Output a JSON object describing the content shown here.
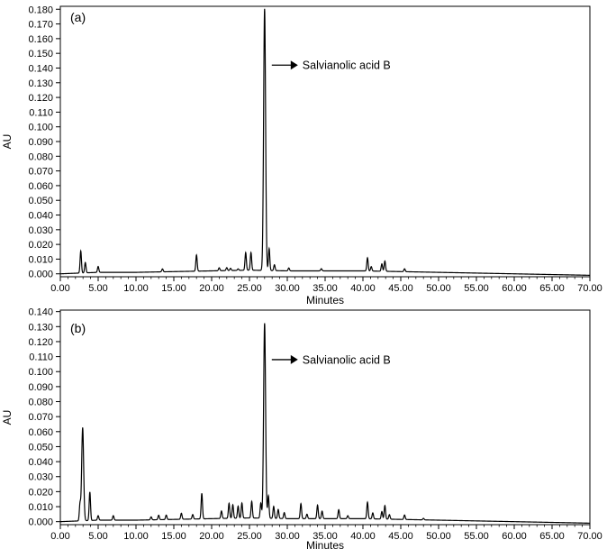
{
  "chart_data": [
    {
      "type": "line",
      "panel_label": "(a)",
      "xlabel": "Minutes",
      "ylabel": "AU",
      "xlim": [
        0,
        70
      ],
      "ylim": [
        -0.002,
        0.182
      ],
      "x_ticks": [
        "0.00",
        "5.00",
        "10.00",
        "15.00",
        "20.00",
        "25.00",
        "30.00",
        "35.00",
        "40.00",
        "45.00",
        "50.00",
        "55.00",
        "60.00",
        "65.00",
        "70.00"
      ],
      "y_ticks": [
        "0.000",
        "0.010",
        "0.020",
        "0.030",
        "0.040",
        "0.050",
        "0.060",
        "0.070",
        "0.080",
        "0.090",
        "0.100",
        "0.110",
        "0.120",
        "0.130",
        "0.140",
        "0.150",
        "0.160",
        "0.170",
        "0.180"
      ],
      "annotation": {
        "text": "Salvianolic acid B",
        "x": 27.0,
        "y": 0.142
      },
      "baseline": [
        [
          0,
          0.0
        ],
        [
          5,
          0.001
        ],
        [
          10,
          0.001
        ],
        [
          15,
          0.0015
        ],
        [
          20,
          0.002
        ],
        [
          25,
          0.0025
        ],
        [
          30,
          0.002
        ],
        [
          35,
          0.002
        ],
        [
          40,
          0.002
        ],
        [
          45,
          0.0015
        ],
        [
          50,
          0.001
        ],
        [
          55,
          0.0005
        ],
        [
          60,
          0.0
        ],
        [
          65,
          -0.0005
        ],
        [
          70,
          -0.001
        ]
      ],
      "peaks": [
        {
          "rt": 2.7,
          "height": 0.015
        },
        {
          "rt": 3.3,
          "height": 0.007
        },
        {
          "rt": 5.0,
          "height": 0.004
        },
        {
          "rt": 13.5,
          "height": 0.002
        },
        {
          "rt": 18.0,
          "height": 0.011
        },
        {
          "rt": 21.0,
          "height": 0.002
        },
        {
          "rt": 22.0,
          "height": 0.002
        },
        {
          "rt": 22.5,
          "height": 0.0015
        },
        {
          "rt": 23.5,
          "height": 0.001
        },
        {
          "rt": 24.5,
          "height": 0.012
        },
        {
          "rt": 25.2,
          "height": 0.012
        },
        {
          "rt": 27.0,
          "height": 0.178
        },
        {
          "rt": 27.6,
          "height": 0.015
        },
        {
          "rt": 28.3,
          "height": 0.004
        },
        {
          "rt": 30.2,
          "height": 0.002
        },
        {
          "rt": 34.5,
          "height": 0.0015
        },
        {
          "rt": 40.6,
          "height": 0.009
        },
        {
          "rt": 41.1,
          "height": 0.003
        },
        {
          "rt": 42.5,
          "height": 0.005
        },
        {
          "rt": 42.9,
          "height": 0.007
        },
        {
          "rt": 45.5,
          "height": 0.002
        }
      ]
    },
    {
      "type": "line",
      "panel_label": "(b)",
      "xlabel": "Minutes",
      "ylabel": "AU",
      "xlim": [
        0,
        70
      ],
      "ylim": [
        -0.002,
        0.141
      ],
      "x_ticks": [
        "0.00",
        "5.00",
        "10.00",
        "15.00",
        "20.00",
        "25.00",
        "30.00",
        "35.00",
        "40.00",
        "45.00",
        "50.00",
        "55.00",
        "60.00",
        "65.00",
        "70.00"
      ],
      "y_ticks": [
        "0.000",
        "0.010",
        "0.020",
        "0.030",
        "0.040",
        "0.050",
        "0.060",
        "0.070",
        "0.080",
        "0.090",
        "0.100",
        "0.110",
        "0.120",
        "0.130",
        "0.140"
      ],
      "annotation": {
        "text": "Salvianolic acid B",
        "x": 27.0,
        "y": 0.108
      },
      "baseline": [
        [
          0,
          0.0
        ],
        [
          5,
          0.001
        ],
        [
          10,
          0.001
        ],
        [
          15,
          0.0015
        ],
        [
          20,
          0.002
        ],
        [
          25,
          0.0025
        ],
        [
          30,
          0.002
        ],
        [
          35,
          0.002
        ],
        [
          40,
          0.002
        ],
        [
          45,
          0.0015
        ],
        [
          50,
          0.001
        ],
        [
          55,
          0.0005
        ],
        [
          60,
          0.0
        ],
        [
          65,
          -0.0005
        ],
        [
          70,
          -0.001
        ]
      ],
      "peaks": [
        {
          "rt": 2.6,
          "height": 0.011
        },
        {
          "rt": 2.95,
          "height": 0.062
        },
        {
          "rt": 3.9,
          "height": 0.019
        },
        {
          "rt": 5.0,
          "height": 0.003
        },
        {
          "rt": 7.0,
          "height": 0.003
        },
        {
          "rt": 12.0,
          "height": 0.002
        },
        {
          "rt": 13.0,
          "height": 0.003
        },
        {
          "rt": 14.0,
          "height": 0.003
        },
        {
          "rt": 16.0,
          "height": 0.004
        },
        {
          "rt": 17.5,
          "height": 0.003
        },
        {
          "rt": 18.7,
          "height": 0.017
        },
        {
          "rt": 21.3,
          "height": 0.005
        },
        {
          "rt": 22.3,
          "height": 0.01
        },
        {
          "rt": 22.8,
          "height": 0.009
        },
        {
          "rt": 23.5,
          "height": 0.008
        },
        {
          "rt": 24.0,
          "height": 0.01
        },
        {
          "rt": 25.3,
          "height": 0.011
        },
        {
          "rt": 26.5,
          "height": 0.01
        },
        {
          "rt": 27.0,
          "height": 0.13
        },
        {
          "rt": 27.5,
          "height": 0.015
        },
        {
          "rt": 28.2,
          "height": 0.008
        },
        {
          "rt": 28.8,
          "height": 0.006
        },
        {
          "rt": 29.6,
          "height": 0.004
        },
        {
          "rt": 31.8,
          "height": 0.01
        },
        {
          "rt": 32.6,
          "height": 0.003
        },
        {
          "rt": 34.0,
          "height": 0.009
        },
        {
          "rt": 34.6,
          "height": 0.005
        },
        {
          "rt": 36.8,
          "height": 0.006
        },
        {
          "rt": 38.0,
          "height": 0.002
        },
        {
          "rt": 40.6,
          "height": 0.011
        },
        {
          "rt": 41.3,
          "height": 0.004
        },
        {
          "rt": 42.5,
          "height": 0.005
        },
        {
          "rt": 42.9,
          "height": 0.009
        },
        {
          "rt": 43.5,
          "height": 0.003
        },
        {
          "rt": 45.5,
          "height": 0.003
        },
        {
          "rt": 48.0,
          "height": 0.001
        }
      ]
    }
  ]
}
